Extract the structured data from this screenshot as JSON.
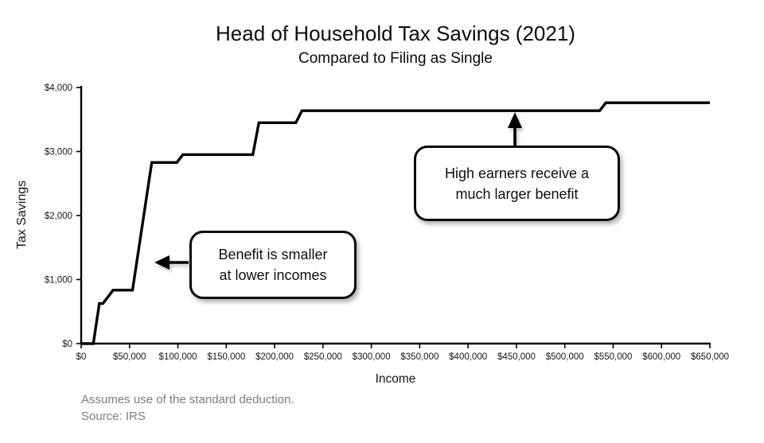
{
  "chart_data": {
    "type": "line",
    "title": "Head of Household Tax Savings (2021)",
    "subtitle": "Compared to Filing as Single",
    "xlabel": "Income",
    "ylabel": "Tax Savings",
    "xlim": [
      0,
      650000
    ],
    "ylim": [
      0,
      4000
    ],
    "grid": false,
    "legend_position": "none",
    "line_color": "#000000",
    "x_ticks": {
      "values": [
        0,
        50000,
        100000,
        150000,
        200000,
        250000,
        300000,
        350000,
        400000,
        450000,
        500000,
        550000,
        600000,
        650000
      ],
      "labels": [
        "$0",
        "$50,000",
        "$100,000",
        "$150,000",
        "$200,000",
        "$250,000",
        "$300,000",
        "$350,000",
        "$400,000",
        "$450,000",
        "$500,000",
        "$550,000",
        "$600,000",
        "$650,000"
      ]
    },
    "y_ticks": {
      "values": [
        0,
        1000,
        2000,
        3000,
        4000
      ],
      "labels": [
        "$0",
        "$1,000",
        "$2,000",
        "$3,000",
        "$4,000"
      ]
    },
    "series": [
      {
        "name": "tax-savings-head-of-household-vs-single",
        "points": [
          [
            0,
            0
          ],
          [
            12550,
            0
          ],
          [
            18800,
            625
          ],
          [
            22500,
            625
          ],
          [
            33000,
            835
          ],
          [
            53075,
            835
          ],
          [
            73000,
            2828
          ],
          [
            98925,
            2828
          ],
          [
            105150,
            2952
          ],
          [
            177475,
            2952
          ],
          [
            183700,
            3450
          ],
          [
            221975,
            3450
          ],
          [
            228200,
            3637
          ],
          [
            536150,
            3637
          ],
          [
            542400,
            3762
          ],
          [
            650000,
            3762
          ]
        ]
      }
    ],
    "annotations": [
      {
        "id": "low-income",
        "lines": [
          "Benefit is smaller",
          "at lower incomes"
        ],
        "arrow_direction": "left",
        "target": {
          "income": 76500,
          "savings": 1270
        }
      },
      {
        "id": "high-earners",
        "lines": [
          "High earners receive a",
          "much larger benefit"
        ],
        "arrow_direction": "up",
        "target": {
          "income": 448000,
          "savings": 3580
        }
      }
    ]
  },
  "footer": {
    "note": "Assumes use of the standard deduction.",
    "source": "Source: IRS"
  }
}
